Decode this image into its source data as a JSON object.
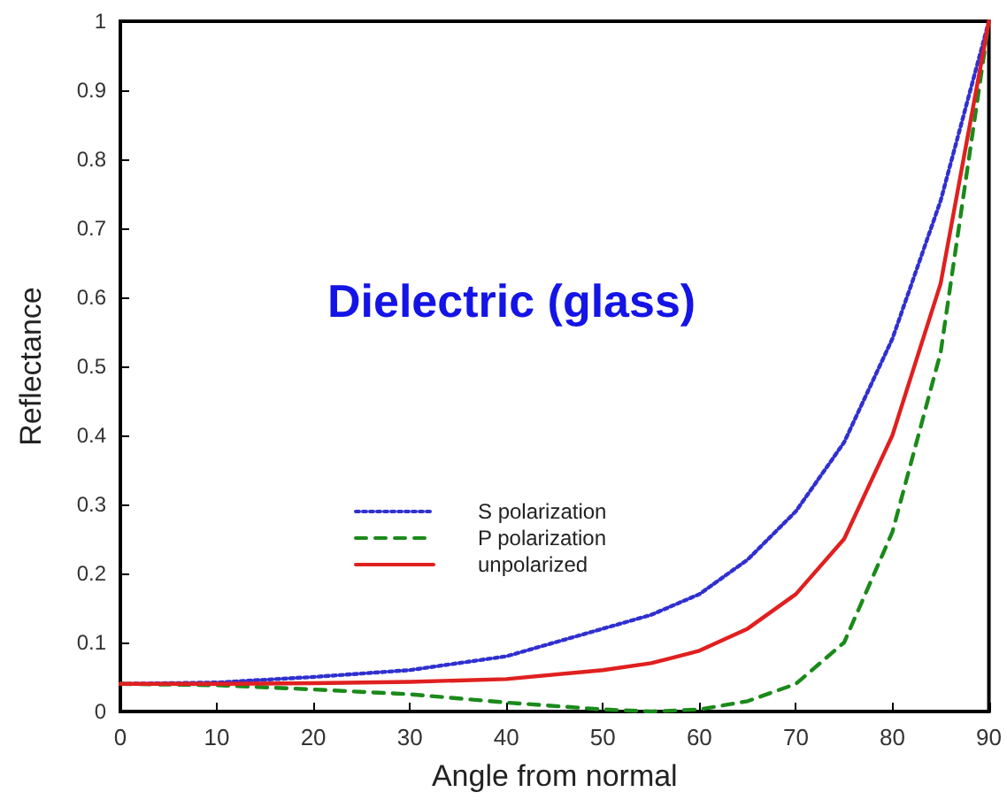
{
  "chart_data": {
    "type": "line",
    "title": "Dielectric (glass)",
    "xlabel": "Angle from normal",
    "ylabel": "Reflectance",
    "x": [
      0,
      10,
      20,
      30,
      40,
      50,
      55,
      60,
      65,
      70,
      75,
      80,
      85,
      90
    ],
    "series": [
      {
        "name": "S polarization",
        "color": "#3030d0",
        "line_style": "dotted",
        "values": [
          0.04,
          0.042,
          0.05,
          0.06,
          0.08,
          0.12,
          0.14,
          0.17,
          0.22,
          0.29,
          0.39,
          0.54,
          0.74,
          1
        ]
      },
      {
        "name": "P polarization",
        "color": "#1a8a1a",
        "line_style": "dashed",
        "values": [
          0.04,
          0.038,
          0.032,
          0.025,
          0.013,
          0.003,
          0,
          0.003,
          0.015,
          0.04,
          0.1,
          0.26,
          0.52,
          1
        ]
      },
      {
        "name": "unpolarized",
        "color": "#e02020",
        "line_style": "solid",
        "values": [
          0.04,
          0.04,
          0.041,
          0.043,
          0.047,
          0.06,
          0.07,
          0.088,
          0.12,
          0.17,
          0.25,
          0.4,
          0.62,
          1
        ]
      }
    ],
    "xlim": [
      0,
      90
    ],
    "xticks": [
      0,
      10,
      20,
      30,
      40,
      50,
      60,
      70,
      80,
      90
    ],
    "ylim": [
      0,
      1
    ],
    "yticks": [
      0,
      0.1,
      0.2,
      0.3,
      0.4,
      0.5,
      0.6,
      0.7,
      0.8,
      0.9,
      1
    ],
    "grid": false,
    "legend": "bottom left",
    "marker": "none"
  }
}
